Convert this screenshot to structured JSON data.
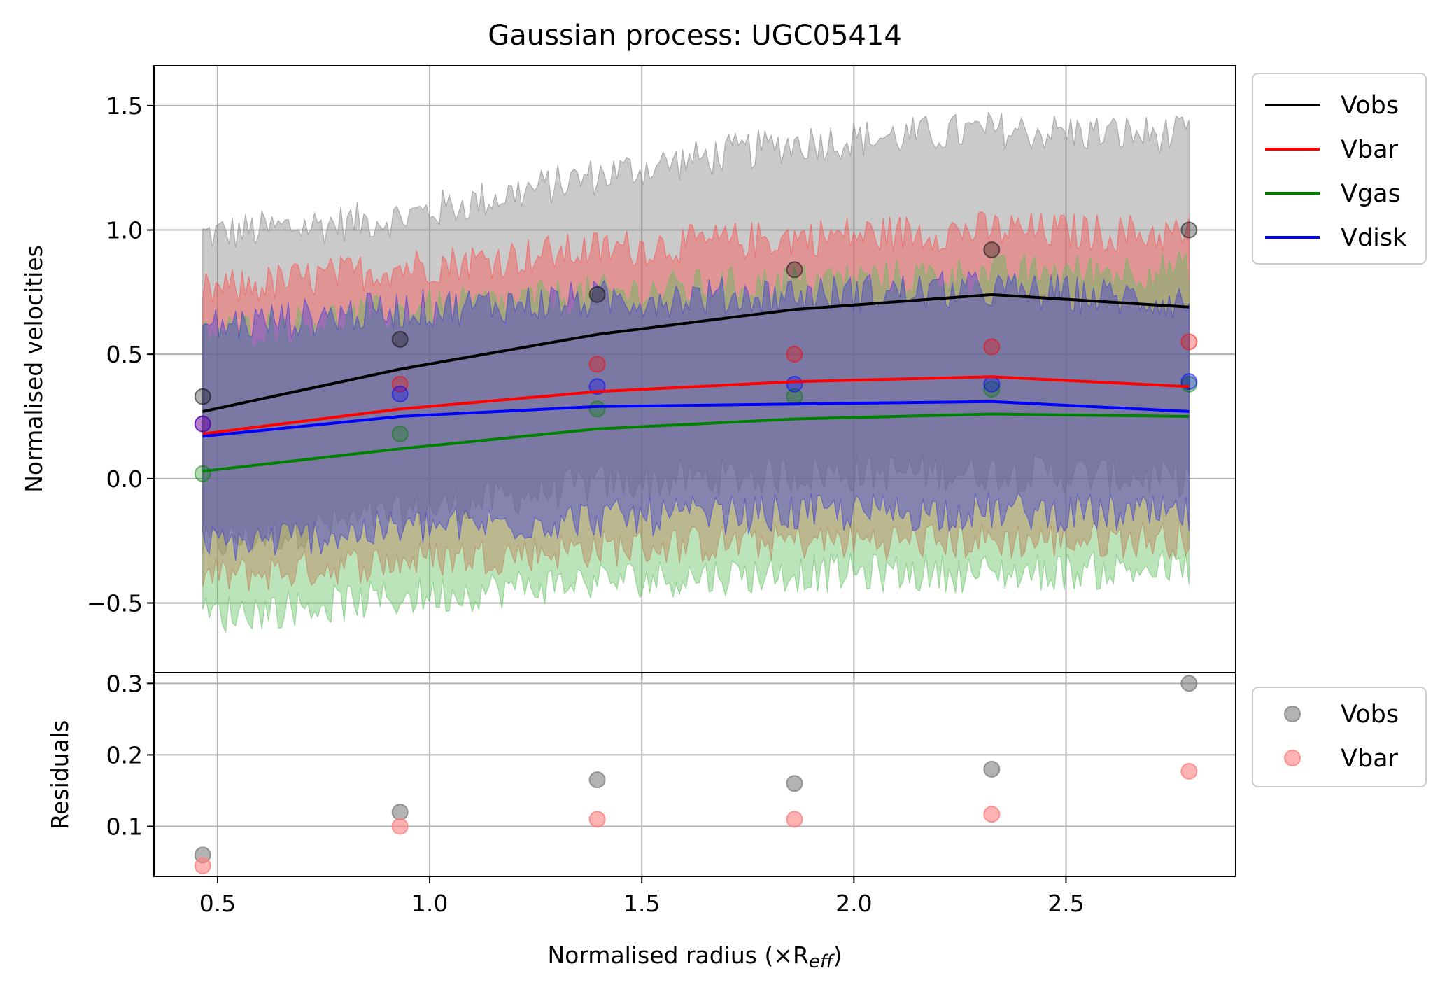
{
  "chart_data": [
    {
      "type": "line",
      "title": "Gaussian process: UGC05414",
      "xlabel": "",
      "ylabel": "Normalised velocities",
      "xlim": [
        0.35,
        2.9
      ],
      "ylim": [
        -0.78,
        1.66
      ],
      "grid": true,
      "legend_position": "outside-top-right",
      "x_ticks": [
        "0.5",
        "1.0",
        "1.5",
        "2.0",
        "2.5"
      ],
      "y_ticks": [
        "−0.5",
        "0.0",
        "0.5",
        "1.0",
        "1.5"
      ],
      "x_tick_values": [
        0.5,
        1.0,
        1.5,
        2.0,
        2.5
      ],
      "y_tick_values": [
        -0.5,
        0.0,
        0.5,
        1.0,
        1.5
      ],
      "x": [
        0.465,
        0.93,
        1.395,
        1.86,
        2.325,
        2.79
      ],
      "series": [
        {
          "name": "Vobs",
          "color": "#000000",
          "values": [
            0.27,
            0.44,
            0.58,
            0.68,
            0.74,
            0.69
          ],
          "band_color": "#808080",
          "band_lower": [
            -0.27,
            -0.14,
            -0.02,
            0.02,
            0.03,
            0.0
          ],
          "band_upper": [
            0.98,
            1.05,
            1.22,
            1.35,
            1.4,
            1.38
          ],
          "observed": [
            0.33,
            0.56,
            0.74,
            0.84,
            0.92,
            1.0
          ]
        },
        {
          "name": "Vbar",
          "color": "#ff0000",
          "values": [
            0.18,
            0.28,
            0.35,
            0.39,
            0.41,
            0.37
          ],
          "band_color": "#ff4d4d",
          "band_lower": [
            -0.4,
            -0.33,
            -0.28,
            -0.25,
            -0.25,
            -0.24
          ],
          "band_upper": [
            0.75,
            0.85,
            0.92,
            0.97,
            1.0,
            0.98
          ],
          "observed": [
            0.22,
            0.38,
            0.46,
            0.5,
            0.53,
            0.55
          ]
        },
        {
          "name": "Vgas",
          "color": "#008000",
          "values": [
            0.03,
            0.12,
            0.2,
            0.24,
            0.26,
            0.25
          ],
          "band_color": "#5cbf5c",
          "band_lower": [
            -0.55,
            -0.48,
            -0.41,
            -0.38,
            -0.38,
            -0.36
          ],
          "band_upper": [
            0.58,
            0.67,
            0.74,
            0.79,
            0.82,
            0.84
          ],
          "observed": [
            0.02,
            0.18,
            0.28,
            0.33,
            0.36,
            0.38
          ]
        },
        {
          "name": "Vdisk",
          "color": "#0000ff",
          "values": [
            0.17,
            0.25,
            0.29,
            0.3,
            0.31,
            0.27
          ],
          "band_color": "#3b3bd9",
          "band_lower": [
            -0.27,
            -0.2,
            -0.16,
            -0.14,
            -0.13,
            -0.15
          ],
          "band_upper": [
            0.61,
            0.68,
            0.72,
            0.74,
            0.76,
            0.71
          ],
          "observed": [
            0.22,
            0.34,
            0.37,
            0.38,
            0.38,
            0.39
          ]
        }
      ]
    },
    {
      "type": "scatter",
      "title": "",
      "xlabel": "Normalised radius (×R",
      "xlabel_sub": "eff",
      "xlabel_close": ")",
      "ylabel": "Residuals",
      "xlim": [
        0.35,
        2.9
      ],
      "ylim": [
        0.03,
        0.315
      ],
      "grid": true,
      "legend_position": "outside-top-right",
      "x_ticks": [
        "0.5",
        "1.0",
        "1.5",
        "2.0",
        "2.5"
      ],
      "y_ticks": [
        "0.1",
        "0.2",
        "0.3"
      ],
      "x_tick_values": [
        0.5,
        1.0,
        1.5,
        2.0,
        2.5
      ],
      "y_tick_values": [
        0.1,
        0.2,
        0.3
      ],
      "x": [
        0.465,
        0.93,
        1.395,
        1.86,
        2.325,
        2.79
      ],
      "series": [
        {
          "name": "Vobs",
          "color": "#808080",
          "values": [
            0.06,
            0.12,
            0.165,
            0.16,
            0.18,
            0.3
          ]
        },
        {
          "name": "Vbar",
          "color": "#ff8080",
          "values": [
            0.045,
            0.1,
            0.11,
            0.11,
            0.117,
            0.177
          ]
        }
      ]
    }
  ]
}
